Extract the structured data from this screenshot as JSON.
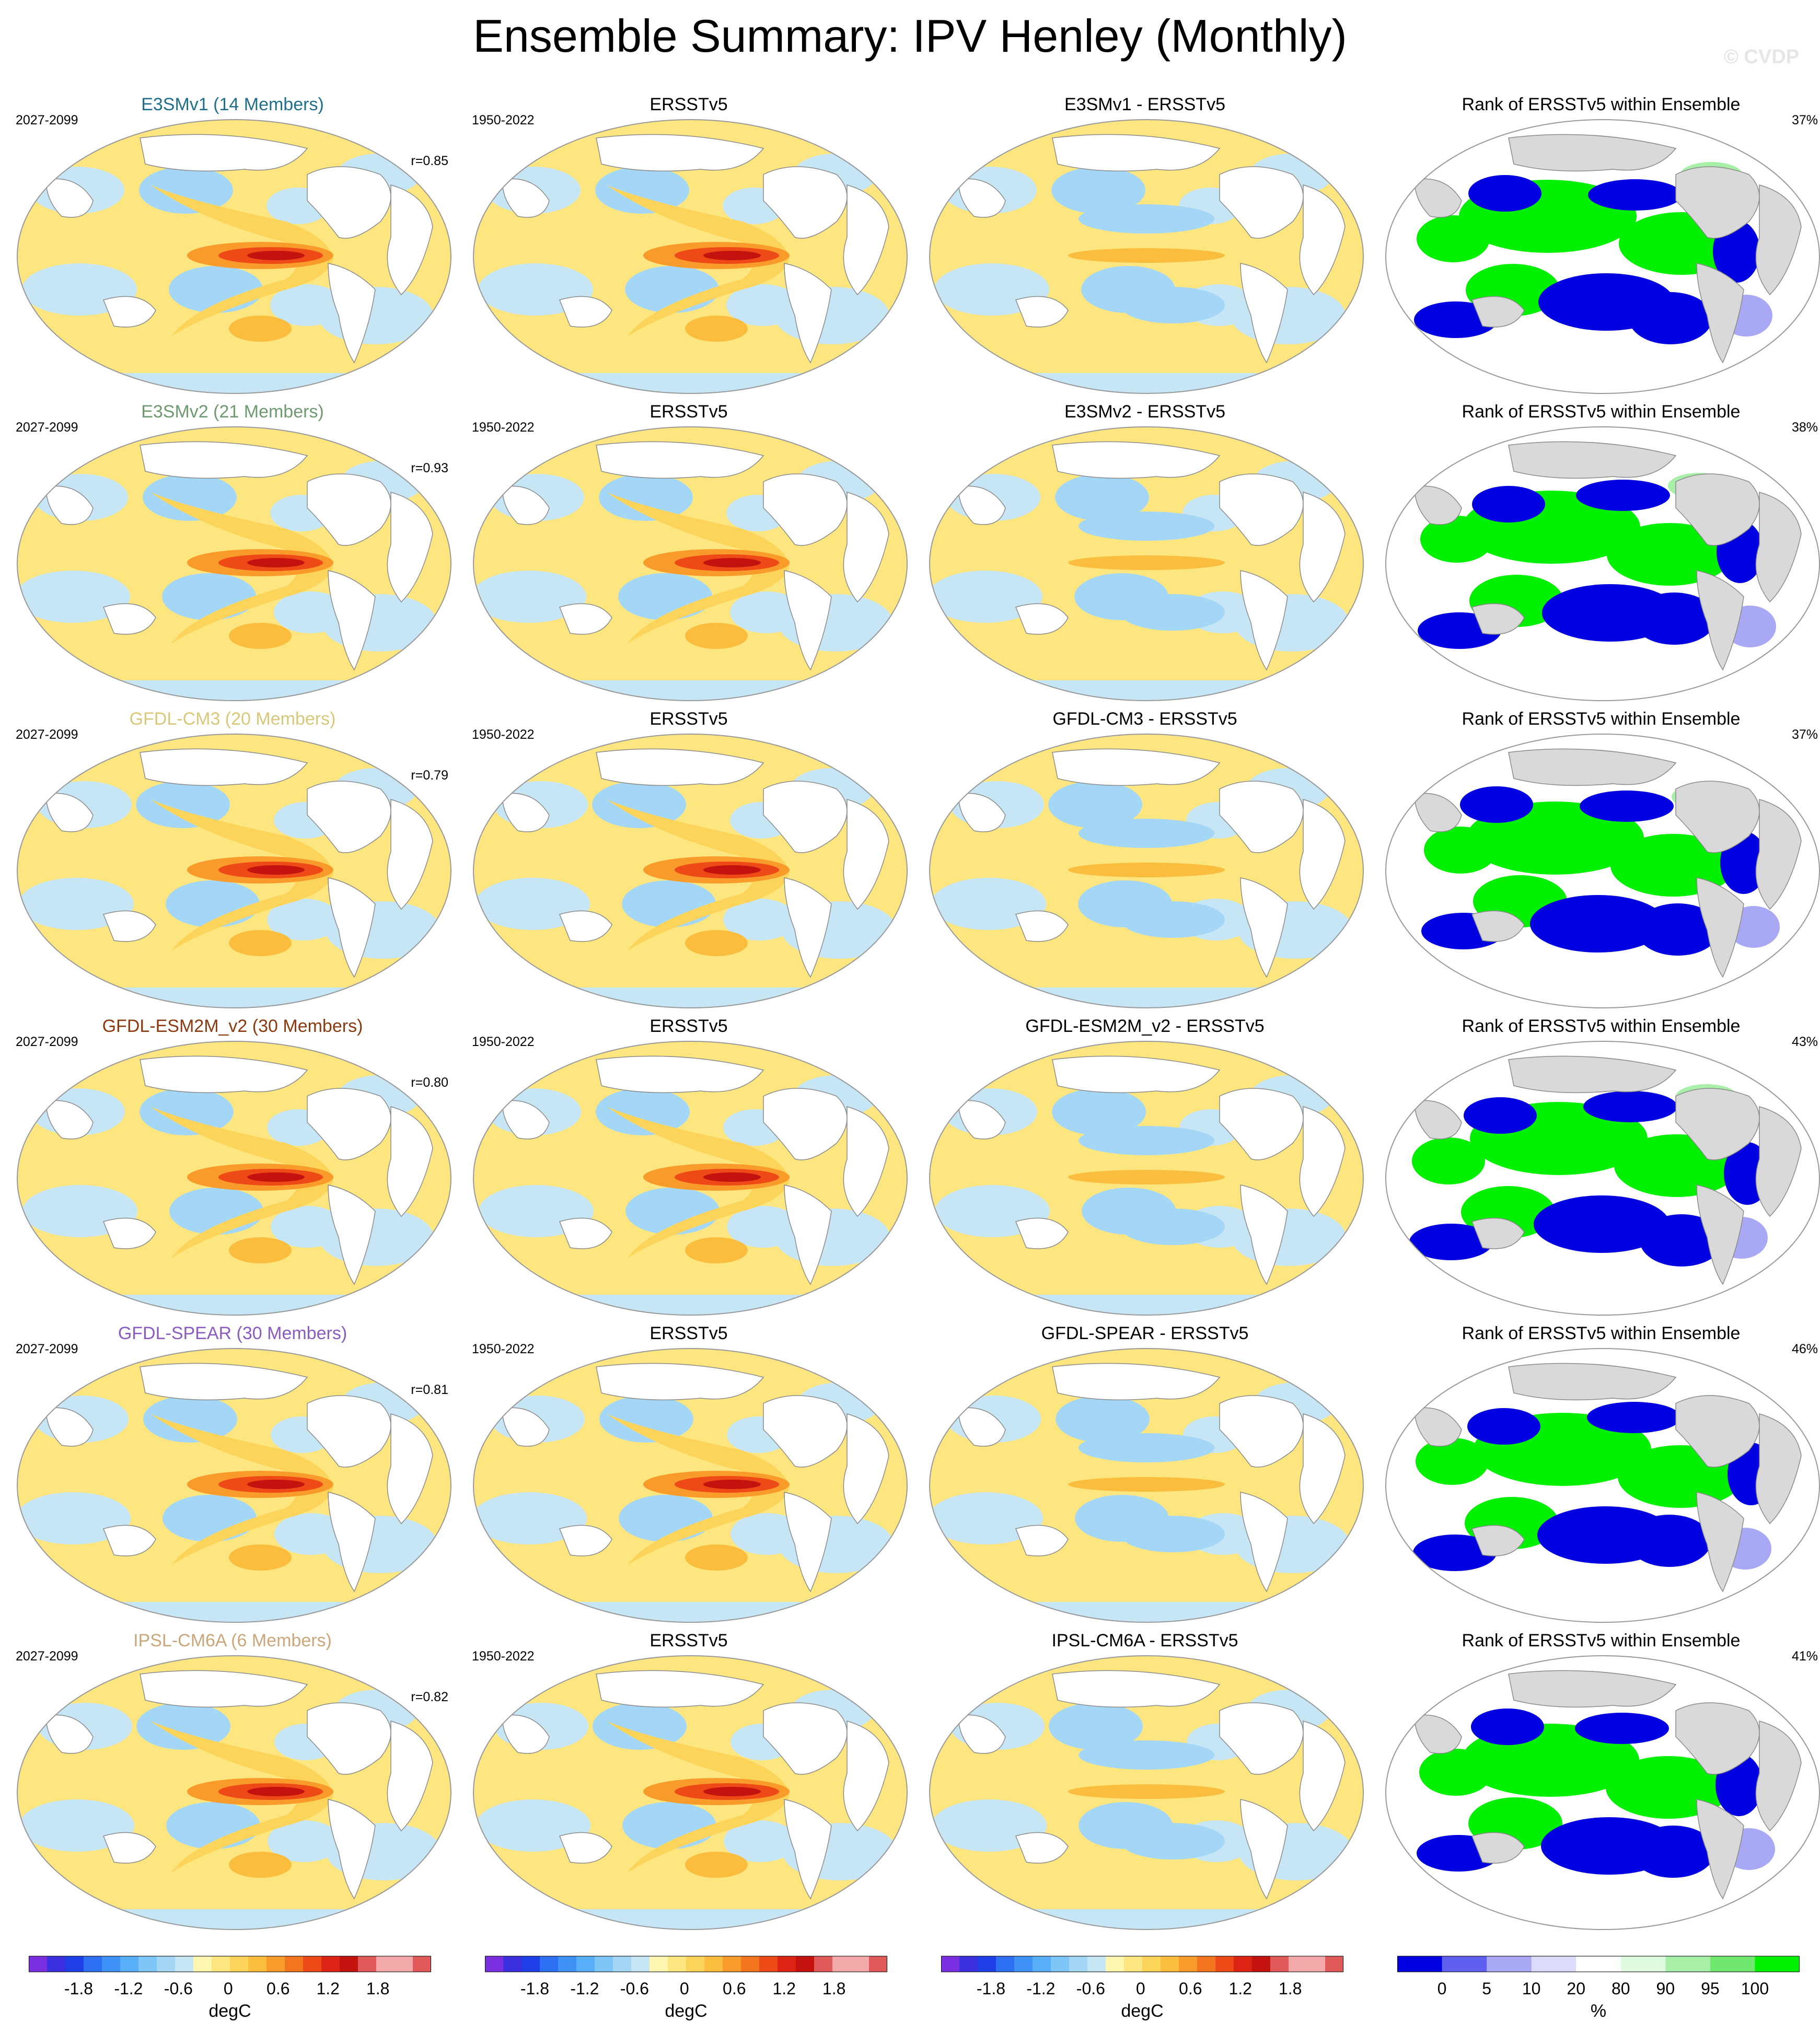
{
  "title": "Ensemble Summary: IPV Henley (Monthly)",
  "watermark": "© CVDP",
  "obs_name": "ERSSTv5",
  "obs_years": "1950-2022",
  "rank_title": "Rank of ERSSTv5 within Ensemble",
  "rows": [
    {
      "model": "E3SMv1 (14 Members)",
      "model_color": "#1f6f8b",
      "years": "2027-2099",
      "r": "r=0.85",
      "diff": "E3SMv1 - ERSSTv5",
      "rank_pct": "37%"
    },
    {
      "model": "E3SMv2 (21 Members)",
      "model_color": "#6f9a6f",
      "years": "2027-2099",
      "r": "r=0.93",
      "diff": "E3SMv2 - ERSSTv5",
      "rank_pct": "38%"
    },
    {
      "model": "GFDL-CM3 (20 Members)",
      "model_color": "#d8c87a",
      "years": "2027-2099",
      "r": "r=0.79",
      "diff": "GFDL-CM3 - ERSSTv5",
      "rank_pct": "37%"
    },
    {
      "model": "GFDL-ESM2M_v2 (30 Members)",
      "model_color": "#8b3a10",
      "years": "2027-2099",
      "r": "r=0.80",
      "diff": "GFDL-ESM2M_v2 - ERSSTv5",
      "rank_pct": "43%"
    },
    {
      "model": "GFDL-SPEAR (30 Members)",
      "model_color": "#8a5cc0",
      "years": "2027-2099",
      "r": "r=0.81",
      "diff": "GFDL-SPEAR - ERSSTv5",
      "rank_pct": "46%"
    },
    {
      "model": "IPSL-CM6A (6 Members)",
      "model_color": "#c9a77a",
      "years": "2027-2099",
      "r": "r=0.82",
      "diff": "IPSL-CM6A - ERSSTv5",
      "rank_pct": "41%"
    }
  ],
  "colorbars": {
    "sst_labels": [
      "-1.8",
      "-1.2",
      "-0.6",
      "0",
      "0.6",
      "1.2",
      "1.8"
    ],
    "sst_units": "degC",
    "rank_labels": [
      "0",
      "5",
      "10",
      "20",
      "80",
      "90",
      "95",
      "100"
    ],
    "rank_units": "%"
  },
  "palette": {
    "sst": [
      "#7a2fe0",
      "#3b2fe0",
      "#1e3ee8",
      "#2c6ff0",
      "#3f92f5",
      "#58aef7",
      "#7ec5f8",
      "#a4d7f6",
      "#c6e6f5",
      "#fff6b0",
      "#fde680",
      "#fdd45a",
      "#fbbd3d",
      "#f99b2a",
      "#f47520",
      "#ee4a18",
      "#dd2414",
      "#c4120f",
      "#e05a5a",
      "#f4a9a9"
    ],
    "rank": [
      "#0000e0",
      "#6060f0",
      "#a8a8f5",
      "#dcdcfa",
      "#ffffff",
      "#e0fae0",
      "#a8f0a8",
      "#70e870",
      "#00f000"
    ],
    "land_rank": "#d9d9d9"
  }
}
